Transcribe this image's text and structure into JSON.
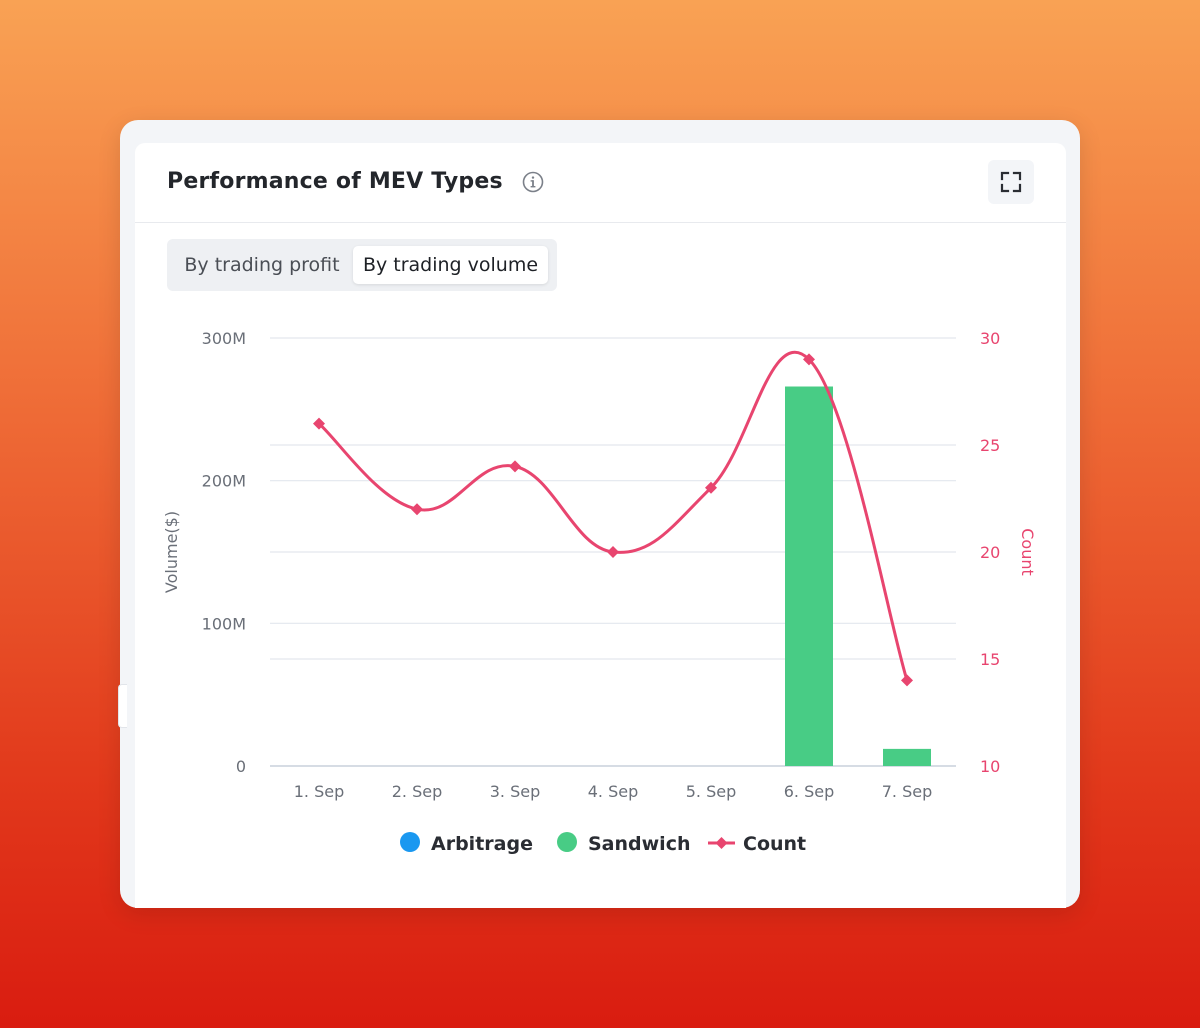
{
  "card": {
    "title": "Performance of MEV Types",
    "tabs": [
      "By trading profit",
      "By trading volume"
    ],
    "selected_tab": "By trading volume"
  },
  "icons": {
    "info": "info-icon",
    "expand": "expand-icon"
  },
  "colors": {
    "arbitrage": "#1a98f0",
    "sandwich": "#48cc85",
    "count": "#e8456f"
  },
  "chart_data": {
    "type": "bar",
    "categories": [
      "1. Sep",
      "2. Sep",
      "3. Sep",
      "4. Sep",
      "5. Sep",
      "6. Sep",
      "7. Sep"
    ],
    "series": [
      {
        "name": "Arbitrage",
        "type": "bar",
        "axis": "left",
        "values": [
          0,
          0,
          0,
          0,
          0,
          0,
          0
        ]
      },
      {
        "name": "Sandwich",
        "type": "bar",
        "axis": "left",
        "values": [
          0,
          0,
          0,
          0,
          0,
          266000000,
          12000000
        ]
      },
      {
        "name": "Count",
        "type": "line",
        "axis": "right",
        "values": [
          26,
          22,
          24,
          20,
          23,
          29,
          14
        ]
      }
    ],
    "ylabel": "Volume($)",
    "ylabel_right": "Count",
    "ylim": [
      0,
      300000000
    ],
    "ylim_right": [
      10,
      30
    ],
    "yticks_left": [
      "0",
      "100M",
      "200M",
      "300M"
    ],
    "yticks_right": [
      "10",
      "15",
      "20",
      "25",
      "30"
    ],
    "legend": [
      "Arbitrage",
      "Sandwich",
      "Count"
    ],
    "legend_position": "bottom-center",
    "grid": true
  }
}
